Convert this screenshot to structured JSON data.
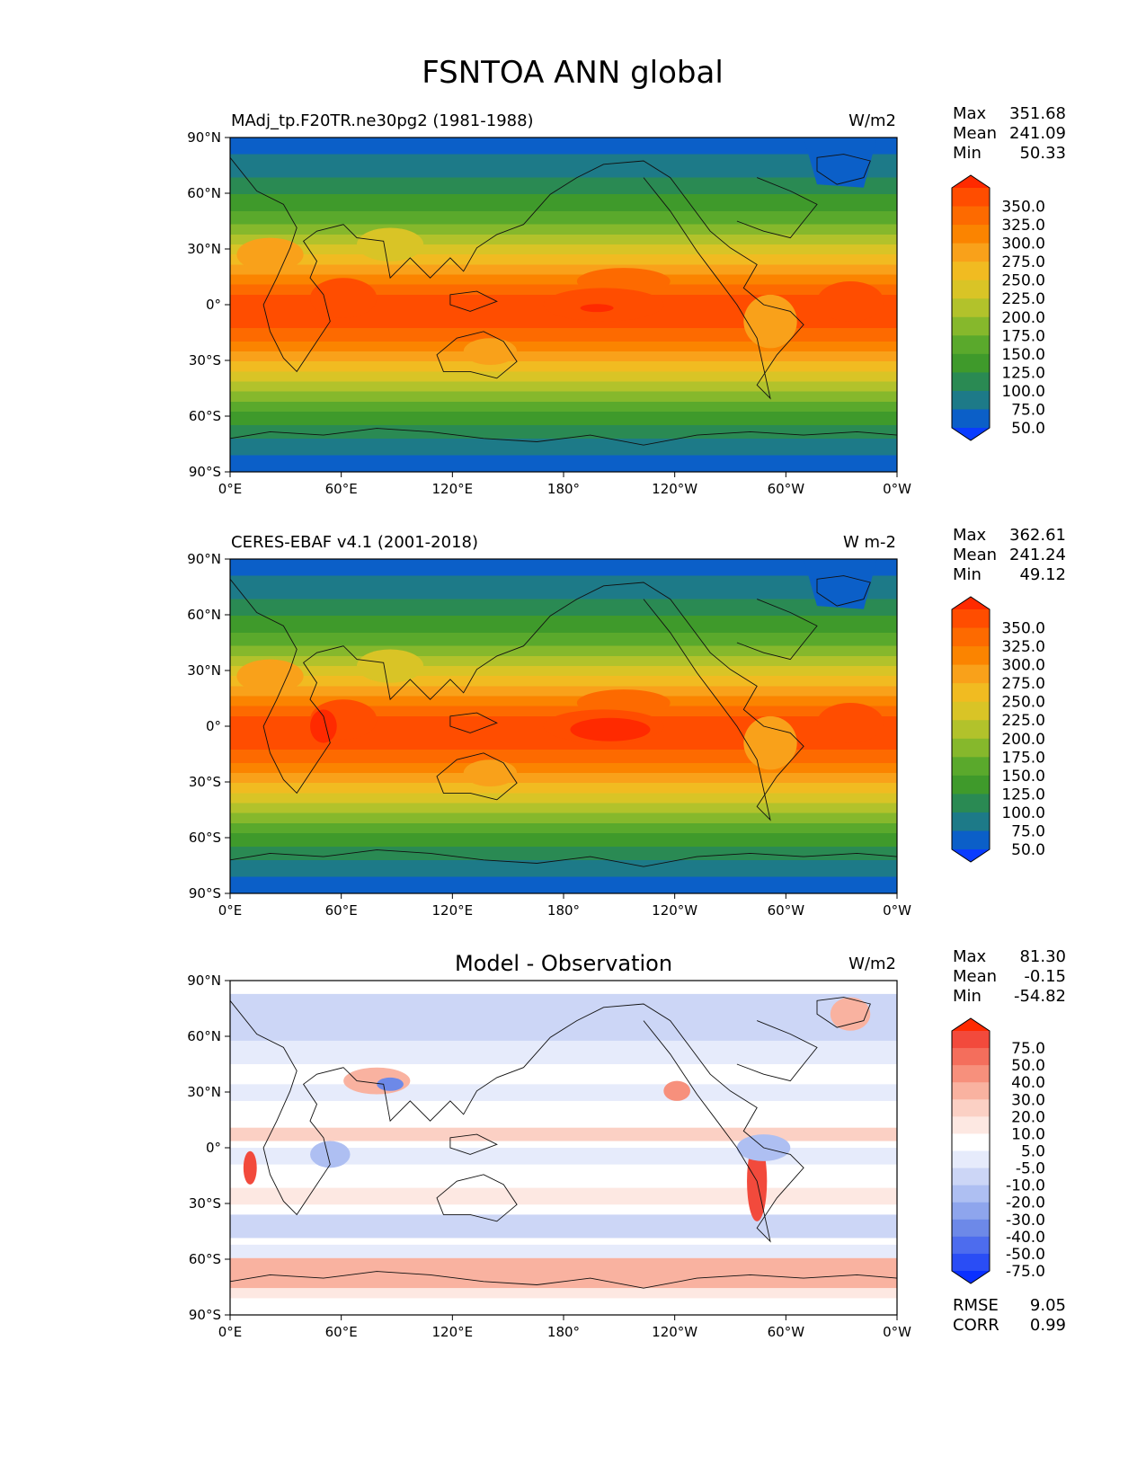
{
  "title": "FSNTOA ANN global",
  "chart_data": [
    {
      "type": "heatmap",
      "subtitle": "MAdj_tp.F20TR.ne30pg2 (1981-1988)",
      "center_title": "",
      "units": "W/m2",
      "x_ticks": [
        "0°E",
        "60°E",
        "120°E",
        "180°",
        "120°W",
        "60°W",
        "0°W"
      ],
      "y_ticks": [
        "90°N",
        "60°N",
        "30°N",
        "0°",
        "30°S",
        "60°S",
        "90°S"
      ],
      "stats": [
        {
          "label": "Max",
          "value": "351.68"
        },
        {
          "label": "Mean",
          "value": "241.09"
        },
        {
          "label": "Min",
          "value": "50.33"
        }
      ],
      "extra_stats": [],
      "colorbar": {
        "labels": [
          "350.0",
          "325.0",
          "300.0",
          "275.0",
          "250.0",
          "225.0",
          "200.0",
          "175.0",
          "150.0",
          "125.0",
          "100.0",
          "75.0",
          "50.0"
        ],
        "colors": [
          "#ff2a00",
          "#ff4d00",
          "#fd6a00",
          "#fb8400",
          "#f9a11a",
          "#f1bb21",
          "#d9c426",
          "#b2c22b",
          "#86b82c",
          "#5aa92c",
          "#3f9a2b",
          "#2a8a53",
          "#1d7a88",
          "#0b5fc8",
          "#0a3cff"
        ]
      },
      "field_kind": "absolute"
    },
    {
      "type": "heatmap",
      "subtitle": "CERES-EBAF v4.1 (2001-2018)",
      "center_title": "",
      "units": "W m-2",
      "x_ticks": [
        "0°E",
        "60°E",
        "120°E",
        "180°",
        "120°W",
        "60°W",
        "0°W"
      ],
      "y_ticks": [
        "90°N",
        "60°N",
        "30°N",
        "0°",
        "30°S",
        "60°S",
        "90°S"
      ],
      "stats": [
        {
          "label": "Max",
          "value": "362.61"
        },
        {
          "label": "Mean",
          "value": "241.24"
        },
        {
          "label": "Min",
          "value": "49.12"
        }
      ],
      "extra_stats": [],
      "colorbar": {
        "labels": [
          "350.0",
          "325.0",
          "300.0",
          "275.0",
          "250.0",
          "225.0",
          "200.0",
          "175.0",
          "150.0",
          "125.0",
          "100.0",
          "75.0",
          "50.0"
        ],
        "colors": [
          "#ff2a00",
          "#ff4d00",
          "#fd6a00",
          "#fb8400",
          "#f9a11a",
          "#f1bb21",
          "#d9c426",
          "#b2c22b",
          "#86b82c",
          "#5aa92c",
          "#3f9a2b",
          "#2a8a53",
          "#1d7a88",
          "#0b5fc8",
          "#0a3cff"
        ]
      },
      "field_kind": "absolute"
    },
    {
      "type": "heatmap",
      "subtitle": "",
      "center_title": "Model - Observation",
      "units": "W/m2",
      "x_ticks": [
        "0°E",
        "60°E",
        "120°E",
        "180°",
        "120°W",
        "60°W",
        "0°W"
      ],
      "y_ticks": [
        "90°N",
        "60°N",
        "30°N",
        "0°",
        "30°S",
        "60°S",
        "90°S"
      ],
      "stats": [
        {
          "label": "Max",
          "value": "81.30"
        },
        {
          "label": "Mean",
          "value": "-0.15"
        },
        {
          "label": "Min",
          "value": "-54.82"
        }
      ],
      "extra_stats": [
        {
          "label": "RMSE",
          "value": "9.05"
        },
        {
          "label": "CORR",
          "value": "0.99"
        }
      ],
      "colorbar": {
        "labels": [
          "75.0",
          "50.0",
          "40.0",
          "30.0",
          "20.0",
          "10.0",
          "5.0",
          "-5.0",
          "-10.0",
          "-20.0",
          "-30.0",
          "-40.0",
          "-50.0",
          "-75.0"
        ],
        "colors": [
          "#ff2a00",
          "#f24a3c",
          "#f46e5c",
          "#f7907c",
          "#f9b2a0",
          "#fbd0c4",
          "#fde8e2",
          "#ffffff",
          "#e6ebfb",
          "#ccd6f6",
          "#aebff2",
          "#8ea5ed",
          "#6d89e8",
          "#4d6cee",
          "#2a4df5",
          "#0a30ff"
        ]
      },
      "field_kind": "difference"
    }
  ]
}
